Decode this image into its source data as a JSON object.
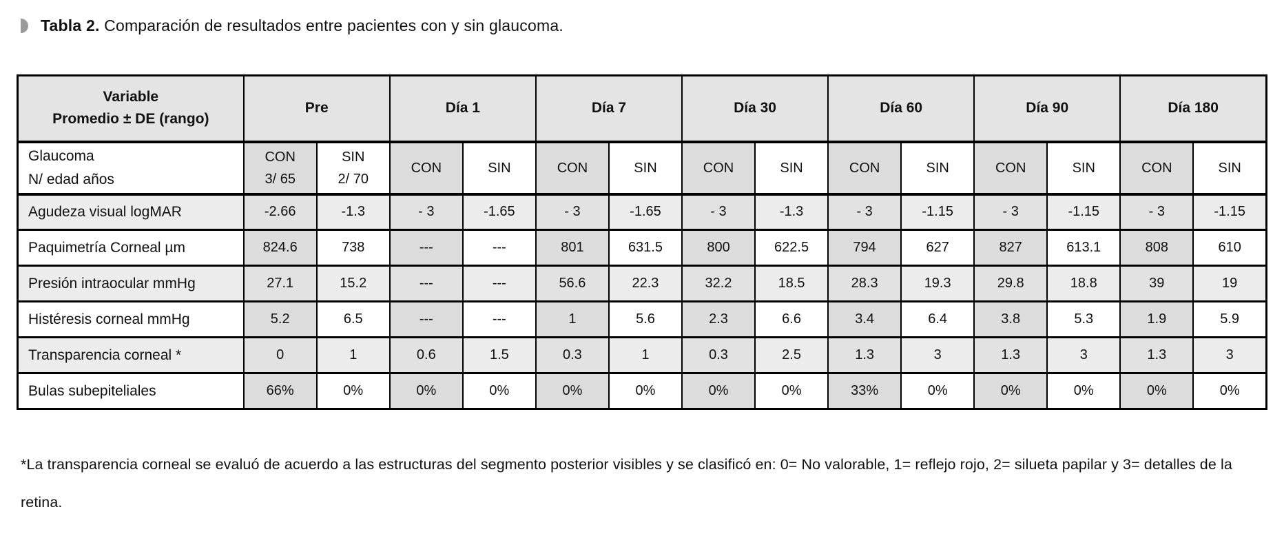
{
  "page": {
    "title_bold": "Tabla 2.",
    "title_rest": " Comparación de resultados entre pacientes con y sin glaucoma.",
    "footnote": "*La transparencia corneal se evaluó de acuerdo a las estructuras del segmento posterior visibles y se clasificó en: 0= No valorable, 1= reflejo rojo, 2= silueta papilar y 3= detalles de la retina."
  },
  "table": {
    "variable_header_line1": "Variable",
    "variable_header_line2": "Promedio ± DE (rango)",
    "day_headers": [
      "Pre",
      "Día 1",
      "Día 7",
      "Día 30",
      "Día 60",
      "Día 90",
      "Día 180"
    ],
    "group_row": {
      "label_line1": "Glaucoma",
      "label_line2": "N/ edad años",
      "cells": [
        [
          "CON",
          "3/ 65"
        ],
        [
          "SIN",
          "2/ 70"
        ],
        [
          "CON"
        ],
        [
          "SIN"
        ],
        [
          "CON"
        ],
        [
          "SIN"
        ],
        [
          "CON"
        ],
        [
          "SIN"
        ],
        [
          "CON"
        ],
        [
          "SIN"
        ],
        [
          "CON"
        ],
        [
          "SIN"
        ],
        [
          "CON"
        ],
        [
          "SIN"
        ]
      ]
    },
    "rows": [
      {
        "label": "Agudeza visual logMAR",
        "values": [
          "-2.66",
          "-1.3",
          "- 3",
          "-1.65",
          "- 3",
          "-1.65",
          "- 3",
          "-1.3",
          "- 3",
          "-1.15",
          "- 3",
          "-1.15",
          "- 3",
          "-1.15"
        ]
      },
      {
        "label": "Paquimetría Corneal µm",
        "values": [
          "824.6",
          "738",
          "---",
          "---",
          "801",
          "631.5",
          "800",
          "622.5",
          "794",
          "627",
          "827",
          "613.1",
          "808",
          "610"
        ]
      },
      {
        "label": "Presión intraocular mmHg",
        "values": [
          "27.1",
          "15.2",
          "---",
          "---",
          "56.6",
          "22.3",
          "32.2",
          "18.5",
          "28.3",
          "19.3",
          "29.8",
          "18.8",
          "39",
          "19"
        ]
      },
      {
        "label": "Histéresis corneal mmHg",
        "values": [
          "5.2",
          "6.5",
          "---",
          "---",
          "1",
          "5.6",
          "2.3",
          "6.6",
          "3.4",
          "6.4",
          "3.8",
          "5.3",
          "1.9",
          "5.9"
        ]
      },
      {
        "label": "Transparencia corneal *",
        "values": [
          "0",
          "1",
          "0.6",
          "1.5",
          "0.3",
          "1",
          "0.3",
          "2.5",
          "1.3",
          "3",
          "1.3",
          "3",
          "1.3",
          "3"
        ]
      },
      {
        "label": "Bulas subepiteliales",
        "values": [
          "66%",
          "0%",
          "0%",
          "0%",
          "0%",
          "0%",
          "0%",
          "0%",
          "33%",
          "0%",
          "0%",
          "0%",
          "0%",
          "0%"
        ]
      }
    ],
    "colors": {
      "header_bg": "#e4e4e4",
      "con_col_bg": "#dcdcdc",
      "stripe_bg": "#ececec",
      "stripe_con_bg": "#e2e2e2",
      "border": "#000000",
      "bullet": "#9b9b9b"
    }
  }
}
